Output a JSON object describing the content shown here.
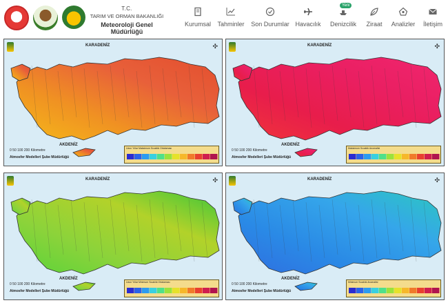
{
  "header": {
    "line1": "T.C.",
    "line2": "TARIM VE ORMAN BAKANLIĞI",
    "line3": "Meteoroloji Genel Müdürlüğü",
    "badge": "Yeni"
  },
  "nav": [
    {
      "label": "Kurumsal",
      "icon": "book-icon"
    },
    {
      "label": "Tahminler",
      "icon": "chart-icon"
    },
    {
      "label": "Son Durumlar",
      "icon": "clock-icon"
    },
    {
      "label": "Havacılık",
      "icon": "plane-icon"
    },
    {
      "label": "Denizcilik",
      "icon": "ship-icon"
    },
    {
      "label": "Ziraat",
      "icon": "leaf-icon"
    },
    {
      "label": "Analizler",
      "icon": "analysis-icon"
    },
    {
      "label": "İletişim",
      "icon": "mail-icon"
    }
  ],
  "panels": [
    {
      "sea_north": "KARADENİZ",
      "sea_south": "AKDENİZ",
      "scale": "0 50 100 200 Kilometre",
      "credit": "Atmosfer Modelleri Şube Müdürlüğü",
      "legend_title": "Uzun Yıllar Maksimum Sıcaklık Ortalaması",
      "colors": [
        "#f5b91a",
        "#f09222",
        "#e8603a",
        "#e34e2e"
      ]
    },
    {
      "sea_north": "KARADENİZ",
      "sea_south": "AKDENİZ",
      "scale": "0 50 100 200 Kilometre",
      "credit": "Atmosfer Modelleri Şube Müdürlüğü",
      "legend_title": "Maksimum Sıcaklık Anomalisi",
      "colors": [
        "#f0363a",
        "#e81d4b",
        "#ea1f62",
        "#f0266f"
      ]
    },
    {
      "sea_north": "KARADENİZ",
      "sea_south": "AKDENİZ",
      "scale": "0 50 100 200 Kilometre",
      "credit": "Atmosfer Modelleri Şube Müdürlüğü",
      "legend_title": "Uzun Yıllar Minimum Sıcaklık Ortalaması",
      "colors": [
        "#5ad33a",
        "#8cd33a",
        "#b2d22a",
        "#3cc63a"
      ]
    },
    {
      "sea_north": "KARADENİZ",
      "sea_south": "AKDENİZ",
      "scale": "0 50 100 200 Kilometre",
      "credit": "Atmosfer Modelleri Şube Müdürlüğü",
      "legend_title": "Minimum Sıcaklık Anomalisi",
      "colors": [
        "#2f6ee0",
        "#2a8ae6",
        "#35a6ea",
        "#2cc7c0"
      ]
    }
  ],
  "legend_colors": [
    "#2b2cd0",
    "#2b63e8",
    "#2c9cf0",
    "#39d0e0",
    "#4fe08a",
    "#9be23c",
    "#e6e22a",
    "#f6b82a",
    "#f07a2a",
    "#e84030",
    "#d01e4e",
    "#b0144e"
  ]
}
